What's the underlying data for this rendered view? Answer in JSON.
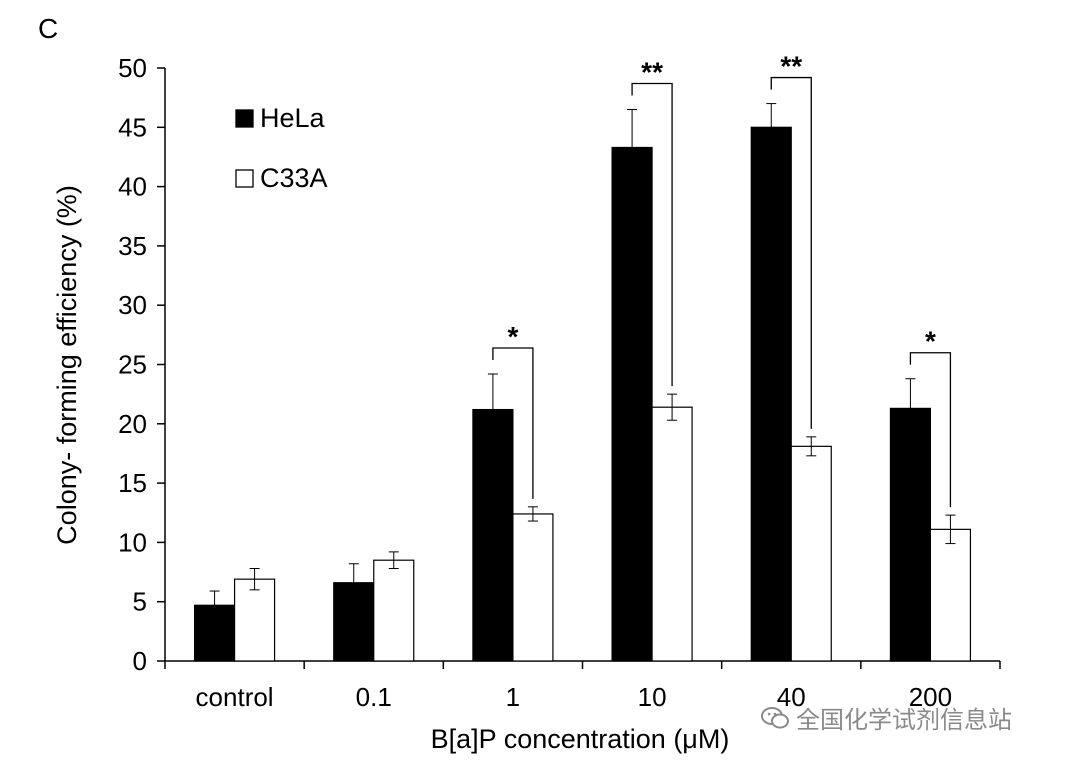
{
  "panel_label": "C",
  "watermark_text": "全国化学试剂信息站",
  "chart_data": {
    "type": "bar",
    "title": "",
    "xlabel": "B[a]P concentration (μM)",
    "ylabel": "Colony- forming efficiency (%)",
    "ylim": [
      0,
      50
    ],
    "yticks": [
      0,
      5,
      10,
      15,
      20,
      25,
      30,
      35,
      40,
      45,
      50
    ],
    "categories": [
      "control",
      "0.1",
      "1",
      "10",
      "40",
      "200"
    ],
    "series": [
      {
        "name": "HeLa",
        "color": "#000000",
        "values": [
          4.7,
          6.6,
          21.2,
          43.3,
          45.0,
          21.3
        ],
        "errors": [
          1.2,
          1.6,
          3.0,
          3.2,
          2.0,
          2.5
        ]
      },
      {
        "name": "C33A",
        "color": "#ffffff",
        "values": [
          6.9,
          8.5,
          12.4,
          21.4,
          18.1,
          11.1
        ],
        "errors": [
          0.9,
          0.7,
          0.6,
          1.1,
          0.8,
          1.2
        ]
      }
    ],
    "legend": "top-left",
    "significance": [
      {
        "category": "1",
        "label": "*"
      },
      {
        "category": "10",
        "label": "**"
      },
      {
        "category": "40",
        "label": "**"
      },
      {
        "category": "200",
        "label": "*"
      }
    ]
  }
}
